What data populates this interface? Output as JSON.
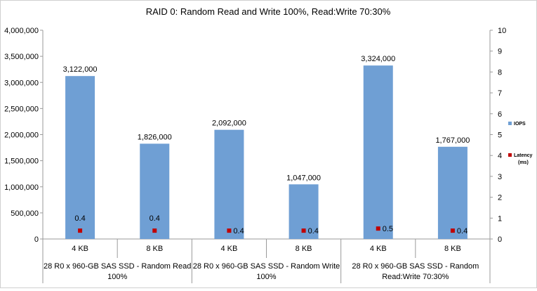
{
  "chart_data": {
    "type": "bar",
    "title": "RAID 0: Random Read and Write 100%, Read:Write 70:30%",
    "groups": [
      {
        "lines": [
          "28 R0 x 960-GB SAS SSD - Random Read",
          "100%"
        ]
      },
      {
        "lines": [
          "28 R0 x 960-GB SAS SSD - Random Write",
          "100%"
        ]
      },
      {
        "lines": [
          "28 R0 x 960-GB SAS SSD - Random",
          "Read:Write 70:30%"
        ]
      }
    ],
    "categories": [
      "4 KB",
      "8 KB",
      "4 KB",
      "8 KB",
      "4 KB",
      "8 KB"
    ],
    "series": [
      {
        "name": "IOPS",
        "axis": "left",
        "kind": "bar",
        "color": "#6f9fd4",
        "values": [
          3122000,
          1826000,
          2092000,
          1047000,
          3324000,
          1767000
        ],
        "labels": [
          "3,122,000",
          "1,826,000",
          "2,092,000",
          "1,047,000",
          "3,324,000",
          "1,767,000"
        ]
      },
      {
        "name": "Latency (ms)",
        "legend_lines": [
          "Latency",
          "(ms)"
        ],
        "axis": "right",
        "kind": "marker",
        "color": "#c00000",
        "values": [
          0.4,
          0.4,
          0.4,
          0.4,
          0.5,
          0.4
        ],
        "labels": [
          "0.4",
          "0.4",
          "0.4",
          "0.4",
          "0.5",
          "0.4"
        ]
      }
    ],
    "y_left": {
      "ylim": [
        0,
        4000000
      ],
      "ticks": [
        "0",
        "500,000",
        "1,000,000",
        "1,500,000",
        "2,000,000",
        "2,500,000",
        "3,000,000",
        "3,500,000",
        "4,000,000"
      ]
    },
    "y_right": {
      "ylim": [
        0,
        10
      ],
      "ticks": [
        "0",
        "1",
        "2",
        "3",
        "4",
        "5",
        "6",
        "7",
        "8",
        "9",
        "10"
      ]
    },
    "grid": false,
    "legend_position": "right"
  }
}
